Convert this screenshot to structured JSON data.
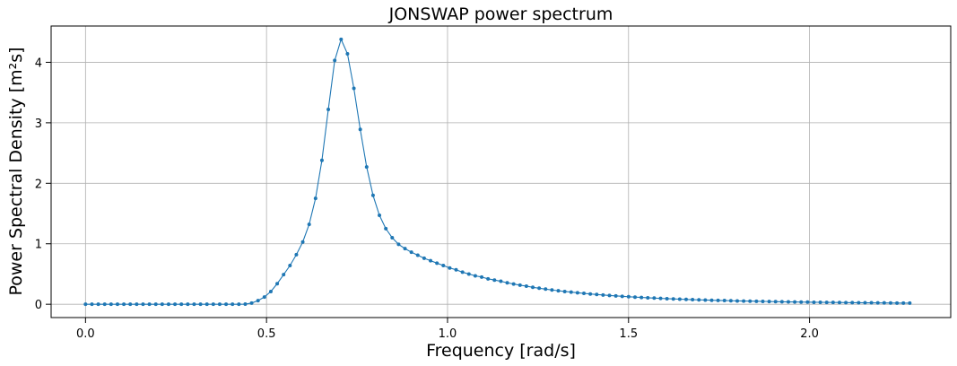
{
  "chart_data": {
    "type": "line",
    "title": "JONSWAP power spectrum",
    "xlabel": "Frequency [rad/s]",
    "ylabel": "Power Spectral Density [m²s]",
    "xlim": [
      -0.095,
      2.39
    ],
    "ylim": [
      -0.22,
      4.6
    ],
    "xticks": [
      0.0,
      0.5,
      1.0,
      1.5,
      2.0
    ],
    "xtick_labels": [
      "0.0",
      "0.5",
      "1.0",
      "1.5",
      "2.0"
    ],
    "yticks": [
      0,
      1,
      2,
      3,
      4
    ],
    "ytick_labels": [
      "0",
      "1",
      "2",
      "3",
      "4"
    ],
    "grid": true,
    "legend": "none",
    "color": "#1f77b4",
    "markers": true,
    "x": [
      0.0,
      0.01765,
      0.0353,
      0.05295,
      0.0706,
      0.08825,
      0.1059,
      0.12355,
      0.1412,
      0.15885,
      0.1765,
      0.19415,
      0.2118,
      0.22945,
      0.2471,
      0.26475,
      0.2824,
      0.30005,
      0.3177,
      0.33535,
      0.353,
      0.37065,
      0.3883,
      0.40595,
      0.4236,
      0.44125,
      0.4589,
      0.47655,
      0.4942,
      0.51185,
      0.5295,
      0.54715,
      0.5648,
      0.58245,
      0.6001,
      0.61775,
      0.6354,
      0.65305,
      0.6707,
      0.68835,
      0.706,
      0.72365,
      0.7413,
      0.75895,
      0.7766,
      0.79425,
      0.8119,
      0.82955,
      0.8472,
      0.86485,
      0.8825,
      0.90015,
      0.9178,
      0.93545,
      0.9531,
      0.97075,
      0.9884,
      1.00605,
      1.0237,
      1.04135,
      1.059,
      1.07665,
      1.0943,
      1.11195,
      1.1296,
      1.14725,
      1.1649,
      1.18255,
      1.2002,
      1.21785,
      1.2355,
      1.25315,
      1.2708,
      1.28845,
      1.3061,
      1.32375,
      1.3414,
      1.35905,
      1.3767,
      1.39435,
      1.412,
      1.42965,
      1.4473,
      1.46495,
      1.4826,
      1.50025,
      1.5179,
      1.53555,
      1.5532,
      1.57085,
      1.5885,
      1.60615,
      1.6238,
      1.64145,
      1.6591,
      1.67675,
      1.6944,
      1.71205,
      1.7297,
      1.74735,
      1.765,
      1.78265,
      1.8003,
      1.81795,
      1.8356,
      1.85325,
      1.8709,
      1.88855,
      1.9062,
      1.92385,
      1.9415,
      1.95915,
      1.9768,
      1.99445,
      2.0121,
      2.02975,
      2.0474,
      2.06505,
      2.0827,
      2.10035,
      2.118,
      2.13565,
      2.1533,
      2.17095,
      2.1886,
      2.20625,
      2.2239,
      2.24155,
      2.2592,
      2.27685
    ],
    "y": [
      0,
      0,
      0,
      0,
      0,
      0,
      0,
      0,
      0,
      0,
      0,
      0,
      0,
      0,
      0,
      0,
      0,
      0,
      0,
      0,
      0,
      0,
      0,
      0,
      0,
      0.002,
      0.02,
      0.06,
      0.12,
      0.21,
      0.34,
      0.49,
      0.64,
      0.82,
      1.03,
      1.32,
      1.75,
      2.38,
      3.22,
      4.03,
      4.38,
      4.14,
      3.57,
      2.89,
      2.27,
      1.8,
      1.47,
      1.25,
      1.1,
      0.99,
      0.92,
      0.86,
      0.81,
      0.76,
      0.72,
      0.68,
      0.64,
      0.6,
      0.57,
      0.53,
      0.5,
      0.47,
      0.45,
      0.42,
      0.4,
      0.38,
      0.355,
      0.335,
      0.315,
      0.3,
      0.28,
      0.265,
      0.25,
      0.236,
      0.223,
      0.211,
      0.2,
      0.19,
      0.18,
      0.17,
      0.161,
      0.153,
      0.145,
      0.138,
      0.131,
      0.124,
      0.118,
      0.112,
      0.107,
      0.102,
      0.097,
      0.092,
      0.088,
      0.084,
      0.08,
      0.076,
      0.073,
      0.07,
      0.066,
      0.063,
      0.061,
      0.058,
      0.055,
      0.053,
      0.051,
      0.049,
      0.047,
      0.045,
      0.043,
      0.041,
      0.039,
      0.038,
      0.036,
      0.035,
      0.033,
      0.032,
      0.031,
      0.03,
      0.029,
      0.027,
      0.026,
      0.025,
      0.024,
      0.024,
      0.023,
      0.022,
      0.021,
      0.02,
      0.019,
      0.019
    ]
  }
}
